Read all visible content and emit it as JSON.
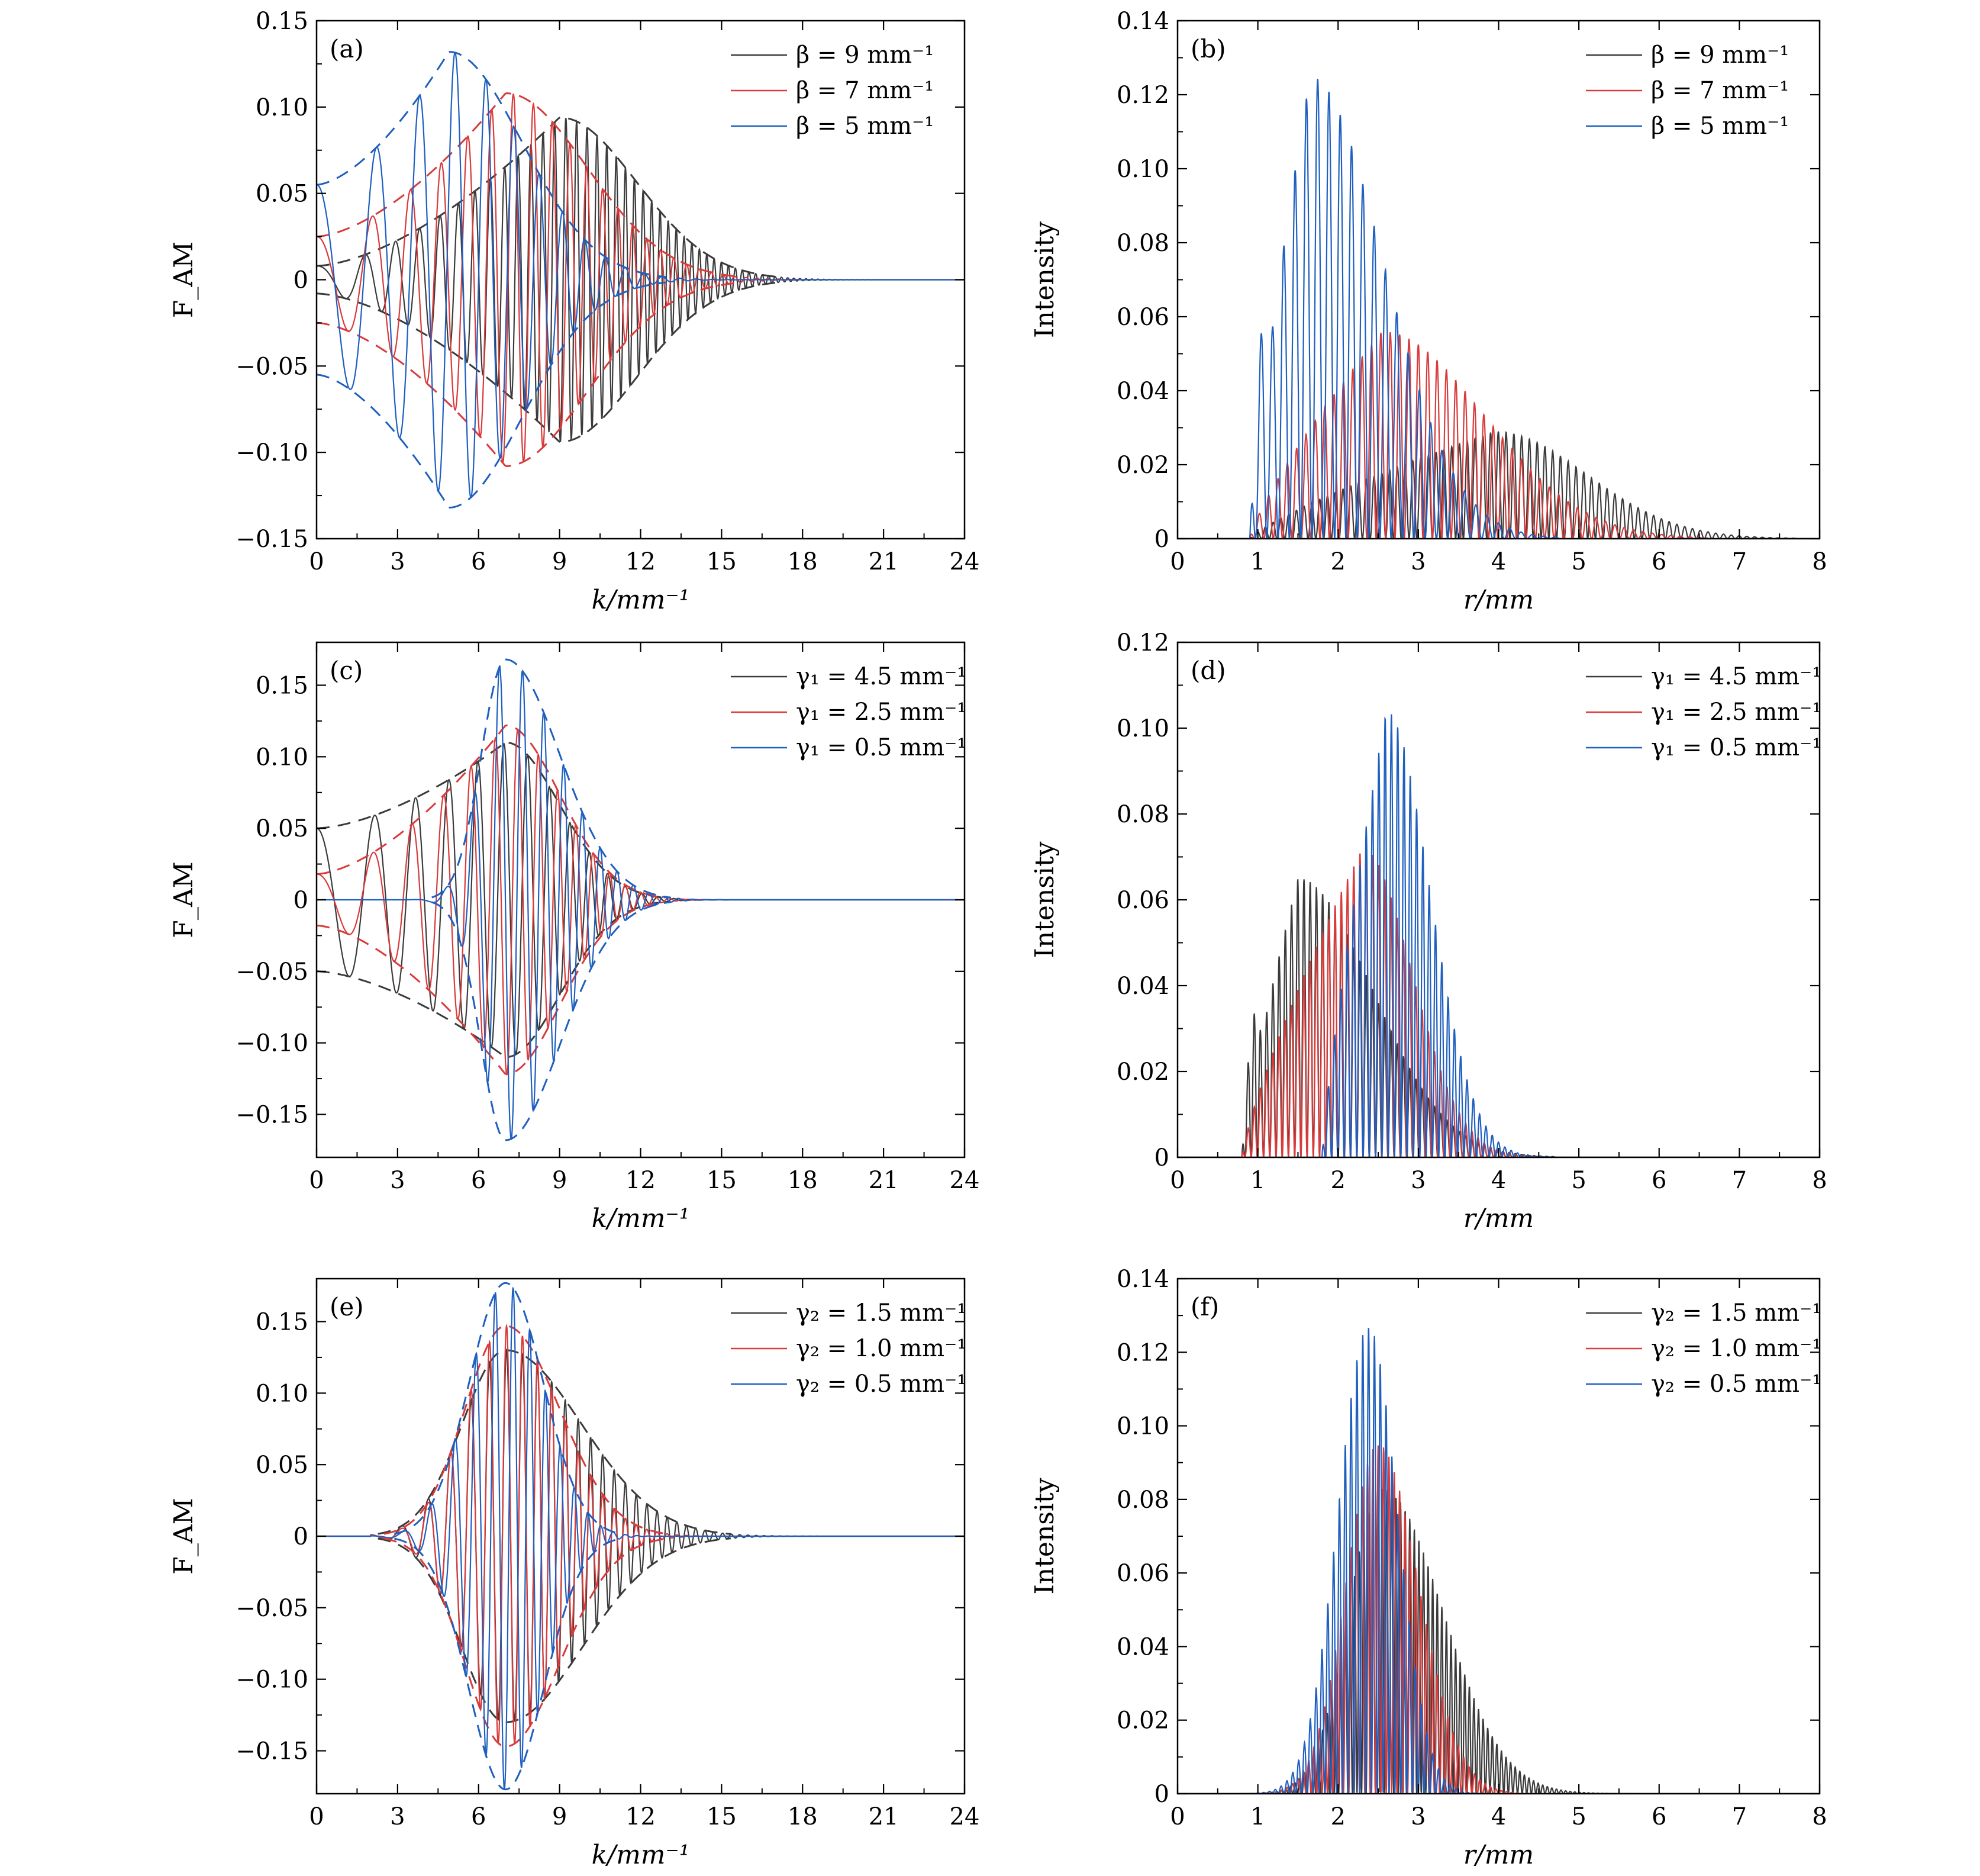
{
  "colors": {
    "black": "#3b3b3b",
    "red": "#d93a3a",
    "blue": "#1f5fbf",
    "axis": "#000000"
  },
  "chart_data": [
    {
      "panel_label": "(a)",
      "type": "line",
      "xlabel": "k/mm⁻¹",
      "ylabel": "F_AM",
      "xlim": [
        0,
        24
      ],
      "ylim": [
        -0.15,
        0.15
      ],
      "xticks": [
        0,
        3,
        6,
        9,
        12,
        15,
        18,
        21,
        24
      ],
      "xtick_labels": [
        "0",
        "3",
        "6",
        "9",
        "12",
        "15",
        "18",
        "21",
        "24"
      ],
      "yticks": [
        -0.15,
        -0.1,
        -0.05,
        0,
        0.05,
        0.1,
        0.15
      ],
      "ytick_labels": [
        "−0.15",
        "−0.10",
        "−0.05",
        "0",
        "0.05",
        "0.10",
        "0.15"
      ],
      "legend_position": "top-right",
      "envelope": "dashed",
      "series": [
        {
          "name": "β = 9 mm⁻¹",
          "color": "#3b3b3b",
          "kind": "oscillation",
          "peak_x": 9.0,
          "peak_y": 0.094,
          "start_amp": 0.008,
          "cycles": 60,
          "tail_end_x": 17.5
        },
        {
          "name": "β = 7 mm⁻¹",
          "color": "#d93a3a",
          "kind": "oscillation",
          "peak_x": 7.0,
          "peak_y": 0.108,
          "start_amp": 0.025,
          "cycles": 34,
          "tail_end_x": 16
        },
        {
          "name": "β = 5 mm⁻¹",
          "color": "#1f5fbf",
          "kind": "oscillation",
          "peak_x": 4.9,
          "peak_y": 0.132,
          "start_amp": 0.055,
          "cycles": 24,
          "tail_end_x": 13
        }
      ]
    },
    {
      "panel_label": "(b)",
      "type": "line",
      "xlabel": "r/mm",
      "ylabel": "Intensity",
      "xlim": [
        0,
        8
      ],
      "ylim": [
        0,
        0.14
      ],
      "xticks": [
        0,
        1,
        2,
        3,
        4,
        5,
        6,
        7,
        8
      ],
      "xtick_labels": [
        "0",
        "1",
        "2",
        "3",
        "4",
        "5",
        "6",
        "7",
        "8"
      ],
      "yticks": [
        0,
        0.02,
        0.04,
        0.06,
        0.08,
        0.1,
        0.12,
        0.14
      ],
      "ytick_labels": [
        "0",
        "0.02",
        "0.04",
        "0.06",
        "0.08",
        "0.10",
        "0.12",
        "0.14"
      ],
      "legend_position": "top-right",
      "series": [
        {
          "name": "β = 9 mm⁻¹",
          "color": "#3b3b3b",
          "kind": "intensity",
          "start_x": 0.9,
          "peak_x": 3.95,
          "peak_y": 0.029,
          "end_x": 6.9,
          "cycles": 62
        },
        {
          "name": "β = 7 mm⁻¹",
          "color": "#d93a3a",
          "kind": "intensity",
          "start_x": 0.9,
          "peak_x": 2.55,
          "peak_y": 0.056,
          "end_x": 5.8,
          "cycles": 42
        },
        {
          "name": "β = 5 mm⁻¹",
          "color": "#1f5fbf",
          "kind": "intensity",
          "start_x": 0.9,
          "peak_x": 1.65,
          "peak_y": 0.125,
          "end_x": 4.0,
          "cycles": 22,
          "first_peak_y": 0.058
        }
      ]
    },
    {
      "panel_label": "(c)",
      "type": "line",
      "xlabel": "k/mm⁻¹",
      "ylabel": "F_AM",
      "xlim": [
        0,
        24
      ],
      "ylim": [
        -0.18,
        0.18
      ],
      "xticks": [
        0,
        3,
        6,
        9,
        12,
        15,
        18,
        21,
        24
      ],
      "xtick_labels": [
        "0",
        "3",
        "6",
        "9",
        "12",
        "15",
        "18",
        "21",
        "24"
      ],
      "yticks": [
        -0.15,
        -0.1,
        -0.05,
        0,
        0.05,
        0.1,
        0.15
      ],
      "ytick_labels": [
        "−0.15",
        "−0.10",
        "−0.05",
        "0",
        "0.05",
        "0.10",
        "0.15"
      ],
      "legend_position": "top-right",
      "envelope": "dashed",
      "series": [
        {
          "name": "γ₁ = 4.5 mm⁻¹",
          "color": "#3b3b3b",
          "kind": "oscillation",
          "peak_x": 7.0,
          "peak_y": 0.11,
          "start_amp": 0.05,
          "cycles": 28,
          "tail_end_x": 13
        },
        {
          "name": "γ₁ = 2.5 mm⁻¹",
          "color": "#d93a3a",
          "kind": "oscillation",
          "peak_x": 7.0,
          "peak_y": 0.122,
          "start_amp": 0.018,
          "cycles": 32,
          "tail_end_x": 13
        },
        {
          "name": "γ₁ = 0.5 mm⁻¹",
          "color": "#1f5fbf",
          "kind": "oscillation",
          "peak_x": 7.0,
          "peak_y": 0.168,
          "start_amp": 0.0,
          "cycles": 30,
          "tail_end_x": 13
        }
      ]
    },
    {
      "panel_label": "(d)",
      "type": "line",
      "xlabel": "r/mm",
      "ylabel": "Intensity",
      "xlim": [
        0,
        8
      ],
      "ylim": [
        0,
        0.12
      ],
      "xticks": [
        0,
        1,
        2,
        3,
        4,
        5,
        6,
        7,
        8
      ],
      "xtick_labels": [
        "0",
        "1",
        "2",
        "3",
        "4",
        "5",
        "6",
        "7",
        "8"
      ],
      "yticks": [
        0,
        0.02,
        0.04,
        0.06,
        0.08,
        0.1,
        0.12
      ],
      "ytick_labels": [
        "0",
        "0.02",
        "0.04",
        "0.06",
        "0.08",
        "0.10",
        "0.12"
      ],
      "legend_position": "top-right",
      "series": [
        {
          "name": "γ₁ = 4.5 mm⁻¹",
          "color": "#3b3b3b",
          "kind": "intensity",
          "start_x": 0.8,
          "peak_x": 1.5,
          "peak_y": 0.065,
          "end_x": 3.9,
          "cycles": 40,
          "first_peak_y": 0.034,
          "plateau_to": 2.4
        },
        {
          "name": "γ₁ = 2.5 mm⁻¹",
          "color": "#d93a3a",
          "kind": "intensity",
          "start_x": 0.8,
          "peak_x": 2.3,
          "peak_y": 0.072,
          "end_x": 3.9,
          "cycles": 40,
          "first_peak_y": 0.009
        },
        {
          "name": "γ₁ = 0.5 mm⁻¹",
          "color": "#1f5fbf",
          "kind": "intensity",
          "start_x": 1.8,
          "peak_x": 2.6,
          "peak_y": 0.104,
          "end_x": 4.0,
          "cycles": 28
        }
      ]
    },
    {
      "panel_label": "(e)",
      "type": "line",
      "xlabel": "k/mm⁻¹",
      "ylabel": "F_AM",
      "xlim": [
        0,
        24
      ],
      "ylim": [
        -0.18,
        0.18
      ],
      "xticks": [
        0,
        3,
        6,
        9,
        12,
        15,
        18,
        21,
        24
      ],
      "xtick_labels": [
        "0",
        "3",
        "6",
        "9",
        "12",
        "15",
        "18",
        "21",
        "24"
      ],
      "yticks": [
        -0.15,
        -0.1,
        -0.05,
        0,
        0.05,
        0.1,
        0.15
      ],
      "ytick_labels": [
        "−0.15",
        "−0.10",
        "−0.05",
        "0",
        "0.05",
        "0.10",
        "0.15"
      ],
      "legend_position": "top-right",
      "envelope": "dashed",
      "series": [
        {
          "name": "γ₂ = 1.5 mm⁻¹",
          "color": "#3b3b3b",
          "kind": "oscillation_sym",
          "peak_x": 7.0,
          "peak_y": 0.13,
          "width_left": 1.6,
          "width_right": 2.8,
          "cycles": 48,
          "start_x": 2
        },
        {
          "name": "γ₂ = 1.0 mm⁻¹",
          "color": "#d93a3a",
          "kind": "oscillation_sym",
          "peak_x": 7.0,
          "peak_y": 0.147,
          "width_left": 1.5,
          "width_right": 2.0,
          "cycles": 48,
          "start_x": 2
        },
        {
          "name": "γ₂ = 0.5 mm⁻¹",
          "color": "#1f5fbf",
          "kind": "oscillation_sym",
          "peak_x": 7.0,
          "peak_y": 0.177,
          "width_left": 1.35,
          "width_right": 1.4,
          "cycles": 44,
          "start_x": 2
        }
      ]
    },
    {
      "panel_label": "(f)",
      "type": "line",
      "xlabel": "r/mm",
      "ylabel": "Intensity",
      "xlim": [
        0,
        8
      ],
      "ylim": [
        0,
        0.14
      ],
      "xticks": [
        0,
        1,
        2,
        3,
        4,
        5,
        6,
        7,
        8
      ],
      "xtick_labels": [
        "0",
        "1",
        "2",
        "3",
        "4",
        "5",
        "6",
        "7",
        "8"
      ],
      "yticks": [
        0,
        0.02,
        0.04,
        0.06,
        0.08,
        0.1,
        0.12,
        0.14
      ],
      "ytick_labels": [
        "0",
        "0.02",
        "0.04",
        "0.06",
        "0.08",
        "0.10",
        "0.12",
        "0.14"
      ],
      "legend_position": "top-right",
      "series": [
        {
          "name": "γ₂ = 1.5 mm⁻¹",
          "color": "#3b3b3b",
          "kind": "gauss_intensity",
          "peak_x": 2.55,
          "peak_y": 0.083,
          "width_left": 0.42,
          "width_right": 0.75,
          "cycles": 70
        },
        {
          "name": "γ₂ = 1.0 mm⁻¹",
          "color": "#d93a3a",
          "kind": "gauss_intensity",
          "peak_x": 2.5,
          "peak_y": 0.095,
          "width_left": 0.4,
          "width_right": 0.5,
          "cycles": 60
        },
        {
          "name": "γ₂ = 0.5 mm⁻¹",
          "color": "#1f5fbf",
          "kind": "gauss_intensity",
          "peak_x": 2.38,
          "peak_y": 0.127,
          "width_left": 0.38,
          "width_right": 0.36,
          "cycles": 55
        }
      ]
    }
  ]
}
